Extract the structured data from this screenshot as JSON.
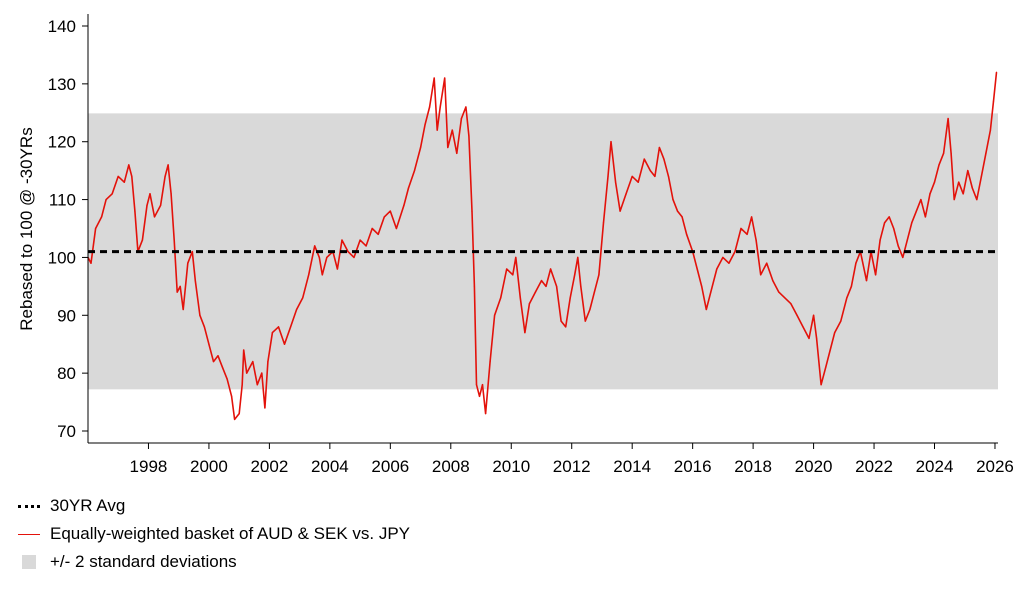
{
  "chart_data": {
    "type": "line",
    "ylabel": "Rebased to 100 @ -30YRs",
    "xlim": [
      1996.0,
      2026.1
    ],
    "ylim": [
      70,
      140
    ],
    "yticks": [
      70,
      80,
      90,
      100,
      110,
      120,
      130,
      140
    ],
    "xticks": [
      1998,
      2000,
      2002,
      2004,
      2006,
      2008,
      2010,
      2012,
      2014,
      2016,
      2018,
      2020,
      2022,
      2024,
      2026
    ],
    "grid": false,
    "legend_position": "bottom-left",
    "band": {
      "name": "+/- 2 standard deviations",
      "lower": 77.2,
      "upper": 124.9,
      "color": "#d9d9d9"
    },
    "avg": {
      "name": "30YR Avg",
      "value": 101.0,
      "color": "#000000"
    },
    "series": [
      {
        "name": "Equally-weighted basket of AUD & SEK vs. JPY",
        "color": "#e3120b",
        "points": [
          [
            1996.0,
            100
          ],
          [
            1996.1,
            99
          ],
          [
            1996.25,
            105
          ],
          [
            1996.45,
            107
          ],
          [
            1996.6,
            110
          ],
          [
            1996.8,
            111
          ],
          [
            1997.0,
            114
          ],
          [
            1997.2,
            113
          ],
          [
            1997.35,
            116
          ],
          [
            1997.45,
            114
          ],
          [
            1997.55,
            108
          ],
          [
            1997.65,
            101
          ],
          [
            1997.8,
            103
          ],
          [
            1997.95,
            109
          ],
          [
            1998.05,
            111
          ],
          [
            1998.2,
            107
          ],
          [
            1998.4,
            109
          ],
          [
            1998.55,
            114
          ],
          [
            1998.65,
            116
          ],
          [
            1998.75,
            111
          ],
          [
            1998.85,
            103
          ],
          [
            1998.95,
            94
          ],
          [
            1999.05,
            95
          ],
          [
            1999.15,
            91
          ],
          [
            1999.3,
            99
          ],
          [
            1999.45,
            101
          ],
          [
            1999.55,
            96
          ],
          [
            1999.7,
            90
          ],
          [
            1999.85,
            88
          ],
          [
            2000.0,
            85
          ],
          [
            2000.15,
            82
          ],
          [
            2000.3,
            83
          ],
          [
            2000.45,
            81
          ],
          [
            2000.6,
            79
          ],
          [
            2000.75,
            76
          ],
          [
            2000.85,
            72
          ],
          [
            2001.0,
            73
          ],
          [
            2001.1,
            78
          ],
          [
            2001.15,
            84
          ],
          [
            2001.25,
            80
          ],
          [
            2001.45,
            82
          ],
          [
            2001.6,
            78
          ],
          [
            2001.75,
            80
          ],
          [
            2001.85,
            74
          ],
          [
            2001.95,
            82
          ],
          [
            2002.1,
            87
          ],
          [
            2002.3,
            88
          ],
          [
            2002.5,
            85
          ],
          [
            2002.7,
            88
          ],
          [
            2002.9,
            91
          ],
          [
            2003.1,
            93
          ],
          [
            2003.3,
            97
          ],
          [
            2003.5,
            102
          ],
          [
            2003.65,
            100
          ],
          [
            2003.75,
            97
          ],
          [
            2003.9,
            100
          ],
          [
            2004.1,
            101
          ],
          [
            2004.25,
            98
          ],
          [
            2004.4,
            103
          ],
          [
            2004.6,
            101
          ],
          [
            2004.8,
            100
          ],
          [
            2005.0,
            103
          ],
          [
            2005.2,
            102
          ],
          [
            2005.4,
            105
          ],
          [
            2005.6,
            104
          ],
          [
            2005.8,
            107
          ],
          [
            2006.0,
            108
          ],
          [
            2006.2,
            105
          ],
          [
            2006.45,
            109
          ],
          [
            2006.6,
            112
          ],
          [
            2006.8,
            115
          ],
          [
            2007.0,
            119
          ],
          [
            2007.15,
            123
          ],
          [
            2007.3,
            126
          ],
          [
            2007.45,
            131
          ],
          [
            2007.55,
            122
          ],
          [
            2007.65,
            126
          ],
          [
            2007.8,
            131
          ],
          [
            2007.9,
            119
          ],
          [
            2008.05,
            122
          ],
          [
            2008.2,
            118
          ],
          [
            2008.35,
            124
          ],
          [
            2008.5,
            126
          ],
          [
            2008.6,
            121
          ],
          [
            2008.7,
            108
          ],
          [
            2008.78,
            95
          ],
          [
            2008.85,
            78
          ],
          [
            2008.95,
            76
          ],
          [
            2009.05,
            78
          ],
          [
            2009.15,
            73
          ],
          [
            2009.3,
            82
          ],
          [
            2009.45,
            90
          ],
          [
            2009.65,
            93
          ],
          [
            2009.85,
            98
          ],
          [
            2010.05,
            97
          ],
          [
            2010.15,
            100
          ],
          [
            2010.3,
            93
          ],
          [
            2010.45,
            87
          ],
          [
            2010.6,
            92
          ],
          [
            2010.8,
            94
          ],
          [
            2011.0,
            96
          ],
          [
            2011.15,
            95
          ],
          [
            2011.3,
            98
          ],
          [
            2011.5,
            95
          ],
          [
            2011.65,
            89
          ],
          [
            2011.8,
            88
          ],
          [
            2011.95,
            93
          ],
          [
            2012.1,
            97
          ],
          [
            2012.2,
            100
          ],
          [
            2012.3,
            95
          ],
          [
            2012.45,
            89
          ],
          [
            2012.6,
            91
          ],
          [
            2012.75,
            94
          ],
          [
            2012.9,
            97
          ],
          [
            2013.05,
            106
          ],
          [
            2013.2,
            114
          ],
          [
            2013.3,
            120
          ],
          [
            2013.45,
            113
          ],
          [
            2013.6,
            108
          ],
          [
            2013.8,
            111
          ],
          [
            2014.0,
            114
          ],
          [
            2014.2,
            113
          ],
          [
            2014.4,
            117
          ],
          [
            2014.6,
            115
          ],
          [
            2014.75,
            114
          ],
          [
            2014.9,
            119
          ],
          [
            2015.05,
            117
          ],
          [
            2015.2,
            114
          ],
          [
            2015.35,
            110
          ],
          [
            2015.5,
            108
          ],
          [
            2015.65,
            107
          ],
          [
            2015.8,
            104
          ],
          [
            2016.0,
            101
          ],
          [
            2016.15,
            98
          ],
          [
            2016.3,
            95
          ],
          [
            2016.45,
            91
          ],
          [
            2016.6,
            94
          ],
          [
            2016.8,
            98
          ],
          [
            2017.0,
            100
          ],
          [
            2017.2,
            99
          ],
          [
            2017.4,
            101
          ],
          [
            2017.6,
            105
          ],
          [
            2017.8,
            104
          ],
          [
            2017.95,
            107
          ],
          [
            2018.1,
            103
          ],
          [
            2018.25,
            97
          ],
          [
            2018.45,
            99
          ],
          [
            2018.65,
            96
          ],
          [
            2018.85,
            94
          ],
          [
            2019.05,
            93
          ],
          [
            2019.25,
            92
          ],
          [
            2019.45,
            90
          ],
          [
            2019.65,
            88
          ],
          [
            2019.85,
            86
          ],
          [
            2020.0,
            90
          ],
          [
            2020.1,
            86
          ],
          [
            2020.25,
            78
          ],
          [
            2020.4,
            81
          ],
          [
            2020.55,
            84
          ],
          [
            2020.7,
            87
          ],
          [
            2020.9,
            89
          ],
          [
            2021.1,
            93
          ],
          [
            2021.25,
            95
          ],
          [
            2021.4,
            99
          ],
          [
            2021.55,
            101
          ],
          [
            2021.75,
            96
          ],
          [
            2021.9,
            101
          ],
          [
            2022.05,
            97
          ],
          [
            2022.2,
            103
          ],
          [
            2022.35,
            106
          ],
          [
            2022.5,
            107
          ],
          [
            2022.65,
            105
          ],
          [
            2022.8,
            102
          ],
          [
            2022.95,
            100
          ],
          [
            2023.1,
            103
          ],
          [
            2023.25,
            106
          ],
          [
            2023.4,
            108
          ],
          [
            2023.55,
            110
          ],
          [
            2023.7,
            107
          ],
          [
            2023.85,
            111
          ],
          [
            2024.0,
            113
          ],
          [
            2024.15,
            116
          ],
          [
            2024.3,
            118
          ],
          [
            2024.45,
            124
          ],
          [
            2024.55,
            118
          ],
          [
            2024.65,
            110
          ],
          [
            2024.8,
            113
          ],
          [
            2024.95,
            111
          ],
          [
            2025.1,
            115
          ],
          [
            2025.25,
            112
          ],
          [
            2025.4,
            110
          ],
          [
            2025.55,
            114
          ],
          [
            2025.7,
            118
          ],
          [
            2025.85,
            122
          ],
          [
            2025.95,
            127
          ],
          [
            2026.05,
            132
          ]
        ]
      }
    ]
  },
  "legend": {
    "avg_label": "30YR Avg",
    "series_label": "Equally-weighted basket of AUD & SEK vs. JPY",
    "band_label": "+/- 2 standard deviations"
  }
}
